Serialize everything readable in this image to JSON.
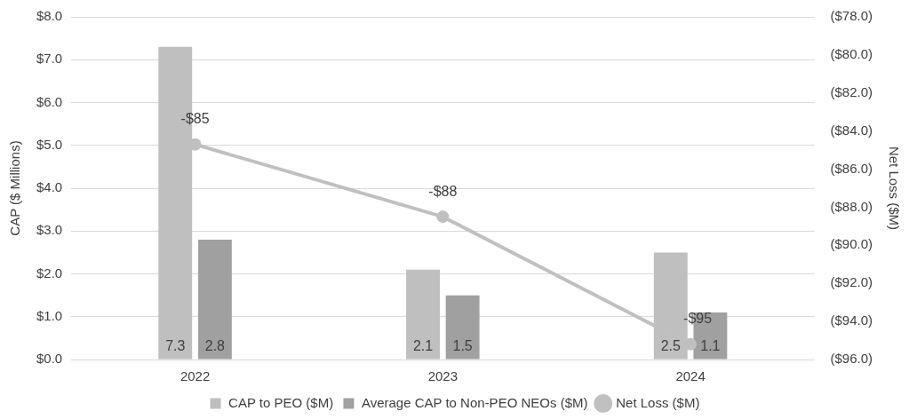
{
  "chart_data": {
    "type": "bar",
    "ylabel": "CAP ($ Millions)",
    "y2label": "Net Loss ($M)",
    "categories": [
      "2022",
      "2023",
      "2024"
    ],
    "series": [
      {
        "name": "CAP to PEO ($M)",
        "color": "#bfbfbf",
        "values": [
          7.3,
          2.1,
          2.5
        ],
        "value_labels": [
          "7.3",
          "2.1",
          "2.5"
        ]
      },
      {
        "name": "Average CAP to Non-PEO NEOs ($M)",
        "color": "#a0a0a0",
        "values": [
          2.8,
          1.5,
          1.1
        ],
        "value_labels": [
          "2.8",
          "1.5",
          "1.1"
        ]
      },
      {
        "name": "Net Loss ($M)",
        "type": "line",
        "axis": "y2",
        "color": "#c0c0c0",
        "values": [
          -84.7,
          -88.5,
          -95.2
        ],
        "value_labels": [
          "-$85",
          "-$88",
          "-$95"
        ]
      }
    ],
    "ylim": [
      0,
      8
    ],
    "yticks": [
      {
        "value": 0,
        "label": "$0.0"
      },
      {
        "value": 1,
        "label": "$1.0"
      },
      {
        "value": 2,
        "label": "$2.0"
      },
      {
        "value": 3,
        "label": "$3.0"
      },
      {
        "value": 4,
        "label": "$4.0"
      },
      {
        "value": 5,
        "label": "$5.0"
      },
      {
        "value": 6,
        "label": "$6.0"
      },
      {
        "value": 7,
        "label": "$7.0"
      },
      {
        "value": 8,
        "label": "$8.0"
      }
    ],
    "y2lim": [
      -96,
      -78
    ],
    "y2ticks": [
      {
        "value": -96,
        "label": "($96.0)"
      },
      {
        "value": -94,
        "label": "($94.0)"
      },
      {
        "value": -92,
        "label": "($92.0)"
      },
      {
        "value": -90,
        "label": "($90.0)"
      },
      {
        "value": -88,
        "label": "($88.0)"
      },
      {
        "value": -86,
        "label": "($86.0)"
      },
      {
        "value": -84,
        "label": "($84.0)"
      },
      {
        "value": -82,
        "label": "($82.0)"
      },
      {
        "value": -80,
        "label": "($80.0)"
      },
      {
        "value": -78,
        "label": "($78.0)"
      }
    ],
    "grid": "y",
    "legend": "bottom",
    "marker": "circle",
    "line_style": "solid"
  }
}
